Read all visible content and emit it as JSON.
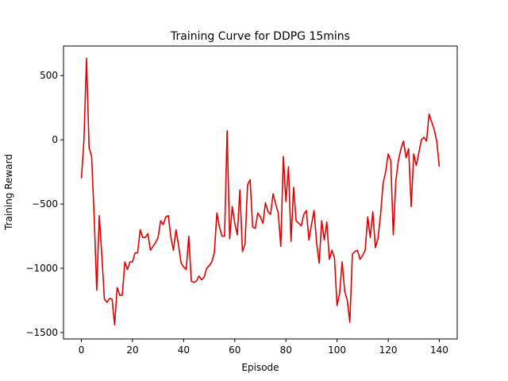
{
  "chart_data": {
    "type": "line",
    "title": "Training Curve for DDPG 15mins",
    "xlabel": "Episode",
    "ylabel": "Training Reward",
    "xlim": [
      -7,
      147
    ],
    "ylim": [
      -1550,
      730
    ],
    "xticks": [
      0,
      20,
      40,
      60,
      80,
      100,
      120,
      140
    ],
    "yticks": [
      -1500,
      -1000,
      -500,
      0,
      500
    ],
    "ytick_labels": [
      "−1500",
      "−1000",
      "−500",
      "0",
      "500"
    ],
    "xtick_labels": [
      "0",
      "20",
      "40",
      "60",
      "80",
      "100",
      "120",
      "140"
    ],
    "grid": false,
    "series": [
      {
        "color": "#e00000",
        "x": [
          0,
          1,
          2,
          3,
          4,
          5,
          6,
          7,
          8,
          9,
          10,
          11,
          12,
          13,
          14,
          15,
          16,
          17,
          18,
          19,
          20,
          21,
          22,
          23,
          24,
          25,
          26,
          27,
          28,
          29,
          30,
          31,
          32,
          33,
          34,
          35,
          36,
          37,
          38,
          39,
          40,
          41,
          42,
          43,
          44,
          45,
          46,
          47,
          48,
          49,
          50,
          51,
          52,
          53,
          54,
          55,
          56,
          57,
          58,
          59,
          60,
          61,
          62,
          63,
          64,
          65,
          66,
          67,
          68,
          69,
          70,
          71,
          72,
          73,
          74,
          75,
          76,
          77,
          78,
          79,
          80,
          81,
          82,
          83,
          84,
          85,
          86,
          87,
          88,
          89,
          90,
          91,
          92,
          93,
          94,
          95,
          96,
          97,
          98,
          99,
          100,
          101,
          102,
          103,
          104,
          105,
          106,
          107,
          108,
          109,
          110,
          111,
          112,
          113,
          114,
          115,
          116,
          117,
          118,
          119,
          120,
          121,
          122,
          123,
          124,
          125,
          126,
          127,
          128,
          129,
          130,
          131,
          132,
          133,
          134,
          135,
          136,
          137,
          138,
          139,
          140
        ],
        "values": [
          -300,
          0,
          635,
          -60,
          -130,
          -600,
          -1170,
          -590,
          -900,
          -1240,
          -1265,
          -1235,
          -1240,
          -1440,
          -1150,
          -1210,
          -1210,
          -950,
          -1010,
          -950,
          -950,
          -880,
          -880,
          -700,
          -760,
          -760,
          -730,
          -860,
          -830,
          -800,
          -760,
          -630,
          -660,
          -600,
          -590,
          -760,
          -860,
          -700,
          -820,
          -960,
          -990,
          -1010,
          -750,
          -1100,
          -1110,
          -1100,
          -1060,
          -1090,
          -1070,
          -1000,
          -980,
          -950,
          -880,
          -570,
          -680,
          -750,
          -750,
          70,
          -770,
          -520,
          -650,
          -740,
          -390,
          -870,
          -810,
          -350,
          -310,
          -680,
          -690,
          -570,
          -600,
          -650,
          -490,
          -560,
          -580,
          -420,
          -500,
          -570,
          -830,
          -130,
          -480,
          -210,
          -790,
          -370,
          -630,
          -650,
          -670,
          -580,
          -550,
          -780,
          -660,
          -550,
          -800,
          -960,
          -630,
          -780,
          -640,
          -930,
          -860,
          -920,
          -1290,
          -1200,
          -950,
          -1180,
          -1250,
          -1420,
          -890,
          -870,
          -860,
          -930,
          -900,
          -860,
          -600,
          -760,
          -560,
          -840,
          -770,
          -590,
          -340,
          -250,
          -110,
          -160,
          -740,
          -320,
          -160,
          -70,
          -10,
          -140,
          -70,
          -520,
          -110,
          -200,
          -100,
          0,
          20,
          -10,
          200,
          140,
          80,
          -10,
          -210
        ]
      }
    ]
  }
}
